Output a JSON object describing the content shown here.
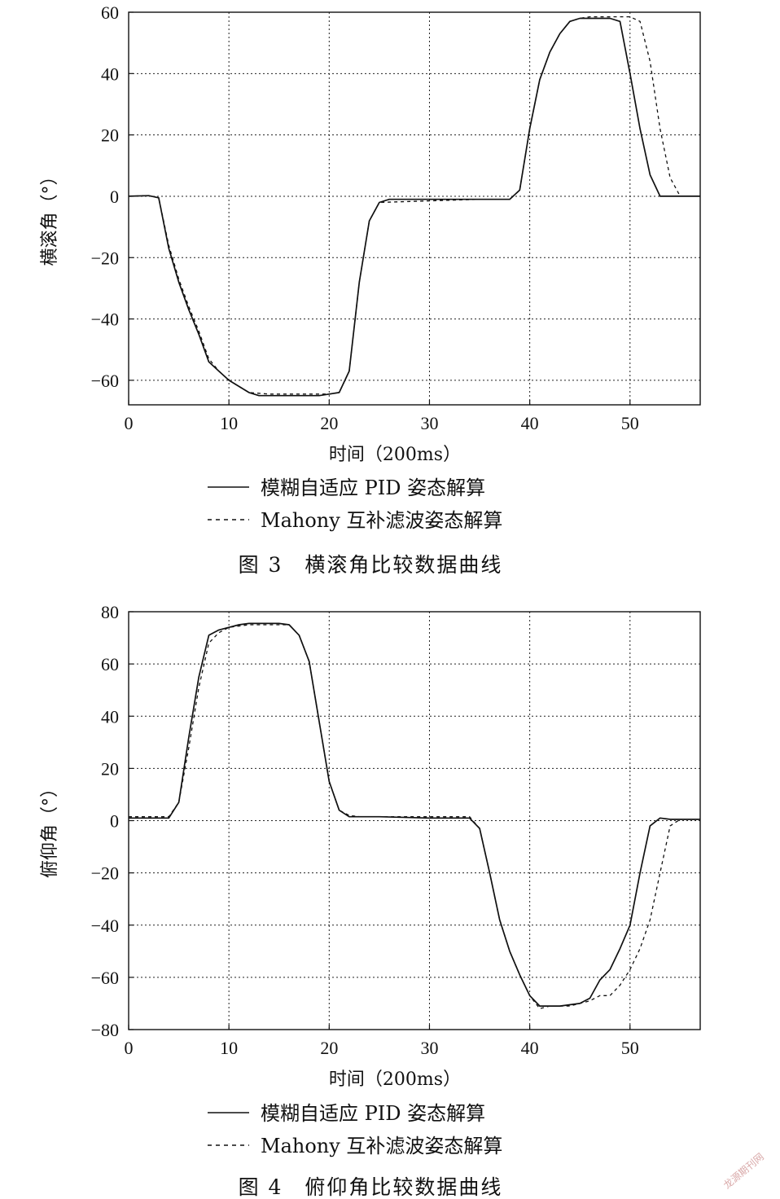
{
  "chart_data": [
    {
      "type": "line",
      "caption": "图 3　横滚角比较数据曲线",
      "xlabel": "时间（200ms）",
      "ylabel": "横滚角（°）",
      "xlim": [
        0,
        57
      ],
      "ylim": [
        -68,
        60
      ],
      "xticks": [
        0,
        10,
        20,
        30,
        40,
        50
      ],
      "yticks": [
        60,
        40,
        20,
        0,
        -20,
        -40,
        -60
      ],
      "grid": true,
      "legend_position": "bottom",
      "series": [
        {
          "name": "模糊自适应 PID 姿态解算",
          "style": "solid",
          "x": [
            0,
            2,
            3,
            4,
            5,
            6,
            7,
            8,
            9,
            10,
            11,
            12,
            13,
            14,
            15,
            16,
            17,
            18,
            19,
            20,
            21,
            22,
            23,
            24,
            25,
            26,
            30,
            35,
            38,
            39,
            40,
            41,
            42,
            43,
            44,
            45,
            46,
            47,
            48,
            49,
            50,
            51,
            52,
            53,
            55,
            57
          ],
          "y": [
            0,
            0.2,
            -0.5,
            -17,
            -28,
            -37,
            -45,
            -54,
            -57,
            -60,
            -62,
            -64,
            -65,
            -65,
            -65,
            -65,
            -65,
            -65,
            -65,
            -64.5,
            -64,
            -57,
            -28,
            -8,
            -2,
            -1,
            -1,
            -1,
            -1,
            2,
            22,
            38,
            47,
            53,
            57,
            58,
            58,
            58,
            58,
            57,
            40,
            22,
            7,
            0,
            0,
            0
          ]
        },
        {
          "name": "Mahony 互补滤波姿态解算",
          "style": "dashed",
          "x": [
            0,
            2,
            3,
            4,
            5,
            6,
            7,
            8,
            9,
            10,
            12,
            14,
            16,
            18,
            20,
            21,
            22,
            23,
            24,
            25,
            30,
            35,
            38,
            39,
            40,
            41,
            42,
            43,
            44,
            45,
            46,
            48,
            50,
            51,
            52,
            53,
            54,
            55,
            57
          ],
          "y": [
            0,
            0.2,
            -0.5,
            -16,
            -27,
            -36,
            -44,
            -53,
            -57,
            -60,
            -64,
            -64.5,
            -64.5,
            -64.5,
            -64.5,
            -64,
            -57,
            -28,
            -8,
            -2,
            -1.5,
            -1,
            -1,
            2,
            22,
            38,
            47,
            53,
            57,
            58,
            58.5,
            58.5,
            58.5,
            57,
            44,
            22,
            6,
            0,
            0
          ]
        }
      ]
    },
    {
      "type": "line",
      "caption": "图 4　俯仰角比较数据曲线",
      "xlabel": "时间（200ms）",
      "ylabel": "俯仰角（°）",
      "xlim": [
        0,
        57
      ],
      "ylim": [
        -80,
        80
      ],
      "xticks": [
        0,
        10,
        20,
        30,
        40,
        50
      ],
      "yticks": [
        80,
        60,
        40,
        20,
        0,
        -20,
        -40,
        -60,
        -80
      ],
      "grid": true,
      "legend_position": "bottom",
      "series": [
        {
          "name": "模糊自适应 PID 姿态解算",
          "style": "solid",
          "x": [
            0,
            4,
            5,
            6,
            7,
            8,
            9,
            10,
            11,
            12,
            13,
            14,
            15,
            16,
            17,
            18,
            19,
            20,
            21,
            22,
            23,
            25,
            30,
            34,
            35,
            36,
            37,
            38,
            39,
            40,
            41,
            42,
            43,
            44,
            45,
            46,
            47,
            48,
            49,
            50,
            51,
            52,
            53,
            54,
            57
          ],
          "y": [
            1,
            1,
            7,
            32,
            55,
            71,
            73,
            74,
            75,
            75.5,
            75.5,
            75.5,
            75.5,
            75,
            71,
            61,
            38,
            15,
            4,
            1.5,
            1.5,
            1.5,
            1,
            1,
            -3,
            -20,
            -38,
            -50,
            -59,
            -67,
            -71,
            -71,
            -71,
            -70.5,
            -70,
            -68,
            -61,
            -57,
            -49,
            -40,
            -20,
            -2,
            1,
            0.5,
            0.5
          ]
        },
        {
          "name": "Mahony 互补滤波姿态解算",
          "style": "dashed",
          "x": [
            0,
            4,
            5,
            6,
            7,
            8,
            9,
            10,
            11,
            12,
            14,
            16,
            17,
            18,
            19,
            20,
            21,
            22,
            23,
            25,
            30,
            34,
            35,
            36,
            37,
            38,
            39,
            40,
            41,
            42,
            44,
            46,
            47,
            48,
            49,
            50,
            51,
            52,
            53,
            54,
            55,
            57
          ],
          "y": [
            1.5,
            1.5,
            7,
            28,
            51,
            68,
            72,
            74,
            74.5,
            75,
            75,
            75,
            71,
            61,
            38,
            15,
            4,
            2,
            1.5,
            1.5,
            1.5,
            1.5,
            -3,
            -20,
            -38,
            -50,
            -59,
            -67,
            -72,
            -71,
            -71,
            -69,
            -67,
            -67,
            -63,
            -57,
            -49,
            -38,
            -20,
            -2,
            0.5,
            0.5
          ]
        }
      ]
    }
  ],
  "watermark": "龙源期刊网"
}
